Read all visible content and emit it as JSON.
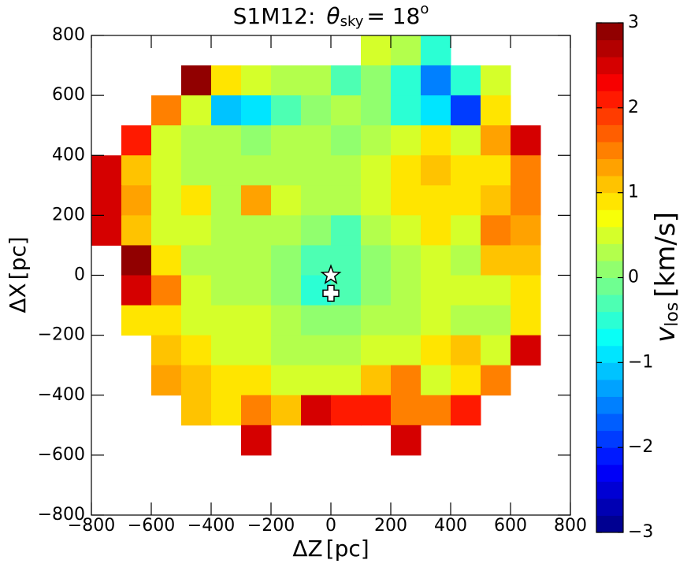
{
  "chart_data": {
    "type": "heatmap",
    "title_prefix": "S1M12:",
    "title_symbol": "θ",
    "title_subscript": "sky",
    "title_value": "= 18",
    "title_superscript": "o",
    "xlabel": "ΔZ",
    "xlabel_unit": "[pc]",
    "ylabel": "ΔX",
    "ylabel_unit": "[pc]",
    "colorbar_label_symbol": "v",
    "colorbar_label_subscript": "los",
    "colorbar_label_unit": "[km/s]",
    "xlim": [
      -800,
      800
    ],
    "ylim": [
      -800,
      800
    ],
    "xticks": [
      {
        "value": -800,
        "label": "−800"
      },
      {
        "value": -600,
        "label": "−600"
      },
      {
        "value": -400,
        "label": "−400"
      },
      {
        "value": -200,
        "label": "−200"
      },
      0,
      200,
      400,
      600,
      800
    ],
    "yticks": [
      {
        "value": -800,
        "label": "−800"
      },
      {
        "value": -600,
        "label": "−600"
      },
      {
        "value": -400,
        "label": "−400"
      },
      {
        "value": -200,
        "label": "−200"
      },
      0,
      200,
      400,
      600,
      800
    ],
    "clim": [
      -3,
      3
    ],
    "colorbar_ticks": [
      {
        "value": -3,
        "label": "−3"
      },
      {
        "value": -2,
        "label": "−2"
      },
      {
        "value": -1,
        "label": "−1"
      },
      0,
      1,
      2,
      3
    ],
    "colormap": "jet",
    "colormap_levels": 30,
    "x": [
      -750,
      -650,
      -550,
      -450,
      -350,
      -250,
      -150,
      -50,
      50,
      150,
      250,
      350,
      450,
      550,
      650,
      750
    ],
    "y": [
      750,
      650,
      550,
      450,
      350,
      250,
      150,
      50,
      -50,
      -150,
      -250,
      -350,
      -450,
      -550
    ],
    "values": [
      [
        null,
        null,
        null,
        null,
        null,
        null,
        null,
        null,
        null,
        0.5,
        0.3,
        -0.5,
        null,
        null,
        null,
        null
      ],
      [
        null,
        null,
        null,
        3,
        0.8,
        0.5,
        0.3,
        0.3,
        -0.3,
        0,
        -0.5,
        -1.5,
        -0.5,
        0.5,
        null,
        null
      ],
      [
        null,
        null,
        1.5,
        0.5,
        -1.2,
        -1,
        -0.3,
        0,
        0.2,
        0,
        -0.5,
        -1,
        -2,
        0.8,
        null,
        null
      ],
      [
        null,
        2,
        0.5,
        0.3,
        0.2,
        0,
        0.3,
        0.2,
        0,
        0.3,
        0.5,
        0.8,
        0.5,
        1.2,
        2.5,
        null
      ],
      [
        2.5,
        1,
        0.5,
        0.3,
        0.2,
        0.2,
        0.3,
        0.2,
        0.3,
        0.5,
        0.8,
        1,
        0.8,
        0.8,
        1.5,
        null
      ],
      [
        2.5,
        1.2,
        0.5,
        0.8,
        0.3,
        1.2,
        0.5,
        0.3,
        0.2,
        0.5,
        0.8,
        0.8,
        0.8,
        1,
        1.5,
        null
      ],
      [
        2.5,
        1,
        0.5,
        0.5,
        0.3,
        0.3,
        0.2,
        0,
        -0.2,
        0.3,
        0.5,
        0.8,
        0.5,
        1.5,
        1.2,
        null
      ],
      [
        null,
        3,
        0.8,
        0.3,
        0.3,
        0.2,
        0,
        -0.3,
        -0.3,
        0,
        0.3,
        0.5,
        0.3,
        1,
        1,
        null
      ],
      [
        null,
        2.5,
        1.5,
        0.5,
        0.3,
        0.2,
        0,
        -0.5,
        -0.3,
        0,
        0.3,
        0.5,
        0.5,
        0.5,
        0.8,
        null
      ],
      [
        null,
        0.8,
        0.8,
        0.5,
        0.5,
        0.5,
        0.2,
        0,
        0,
        0.2,
        0.3,
        0.5,
        0.3,
        0.3,
        0.8,
        null
      ],
      [
        null,
        null,
        1,
        0.8,
        0.5,
        0.5,
        0.3,
        0.3,
        0.3,
        0.5,
        0.5,
        0.8,
        1,
        0.5,
        2.5,
        null
      ],
      [
        null,
        null,
        1.2,
        1,
        0.8,
        0.8,
        0.5,
        0.5,
        0.5,
        1,
        1.5,
        0.5,
        0.8,
        1.5,
        null,
        null
      ],
      [
        null,
        null,
        null,
        1,
        0.8,
        1.5,
        1,
        2.5,
        2,
        2,
        1.5,
        1.5,
        2,
        null,
        null,
        null
      ],
      [
        null,
        null,
        null,
        null,
        null,
        2.5,
        null,
        null,
        null,
        null,
        2.5,
        null,
        null,
        null,
        null,
        null
      ]
    ],
    "markers": [
      {
        "shape": "star",
        "x": 0,
        "y": 0
      },
      {
        "shape": "plus",
        "x": 0,
        "y": -60
      }
    ]
  }
}
